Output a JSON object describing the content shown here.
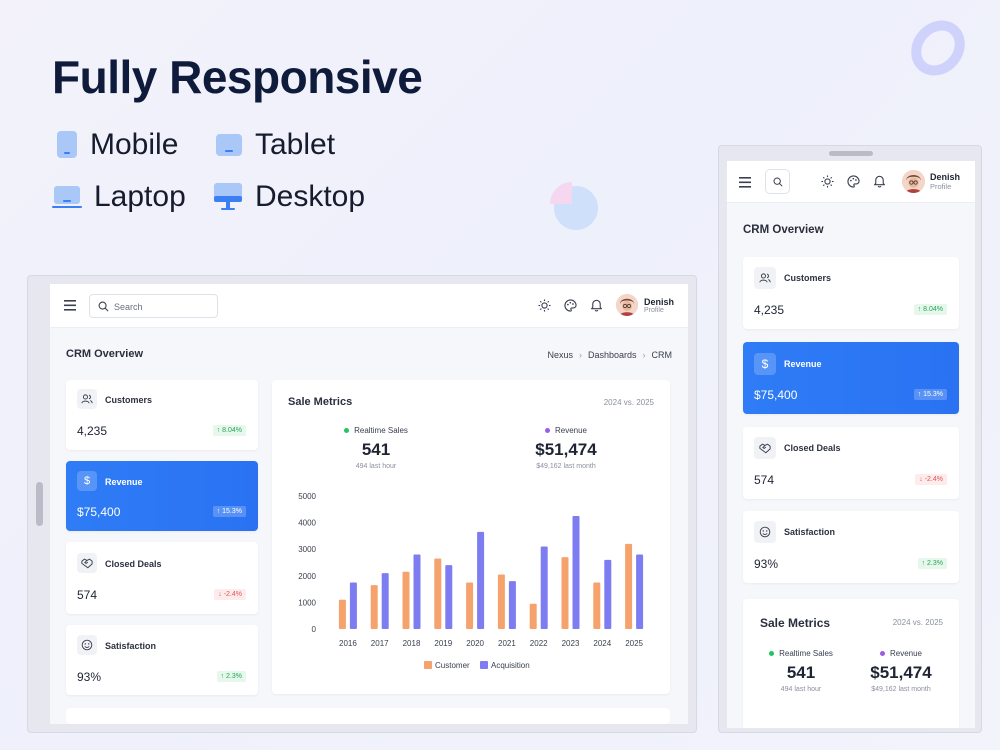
{
  "headline": "Fully Responsive",
  "devices": [
    {
      "label": "Mobile",
      "icon": "mobile-icon"
    },
    {
      "label": "Tablet",
      "icon": "tablet-icon"
    },
    {
      "label": "Laptop",
      "icon": "laptop-icon"
    },
    {
      "label": "Desktop",
      "icon": "desktop-icon"
    }
  ],
  "app": {
    "search_placeholder": "Search",
    "profile_name": "Denish",
    "profile_role": "Profile",
    "page_title": "CRM Overview",
    "breadcrumb": [
      "Nexus",
      "Dashboards",
      "CRM"
    ]
  },
  "stats": [
    {
      "label": "Customers",
      "value": "4,235",
      "change": "8.04%",
      "trend": "up",
      "icon": "users-icon"
    },
    {
      "label": "Revenue",
      "value": "$75,400",
      "change": "15.3%",
      "trend": "up",
      "icon": "dollar-icon",
      "highlight": true
    },
    {
      "label": "Closed Deals",
      "value": "574",
      "change": "-2.4%",
      "trend": "down",
      "icon": "handshake-icon"
    },
    {
      "label": "Satisfaction",
      "value": "93%",
      "change": "2.3%",
      "trend": "up",
      "icon": "smile-icon"
    }
  ],
  "metrics": {
    "title": "Sale Metrics",
    "period": "2024 vs. 2025",
    "kpis": [
      {
        "label": "Realtime Sales",
        "value": "541",
        "sub": "494 last hour",
        "color": "#22c55e"
      },
      {
        "label": "Revenue",
        "value": "$51,474",
        "sub": "$49,162 last month",
        "color": "#9b5de5"
      }
    ]
  },
  "colors": {
    "accent_blue": "#2f7cf6",
    "customer": "#f5a26c",
    "acquisition": "#7d7cf0",
    "up": "#2aa55a",
    "down": "#e25555"
  },
  "chart_data": {
    "type": "bar",
    "categories": [
      "2016",
      "2017",
      "2018",
      "2019",
      "2020",
      "2021",
      "2022",
      "2023",
      "2024",
      "2025"
    ],
    "series": [
      {
        "name": "Customer",
        "values": [
          1100,
          1650,
          2150,
          2650,
          1750,
          2050,
          950,
          2700,
          1750,
          3200
        ]
      },
      {
        "name": "Acquisition",
        "values": [
          1750,
          2100,
          2800,
          2400,
          3650,
          1800,
          3100,
          4250,
          2600,
          2800
        ]
      }
    ],
    "yticks": [
      "0",
      "1000",
      "2000",
      "3000",
      "4000",
      "5000"
    ],
    "ylim": [
      0,
      5000
    ],
    "legend_position": "bottom",
    "grid": false
  }
}
